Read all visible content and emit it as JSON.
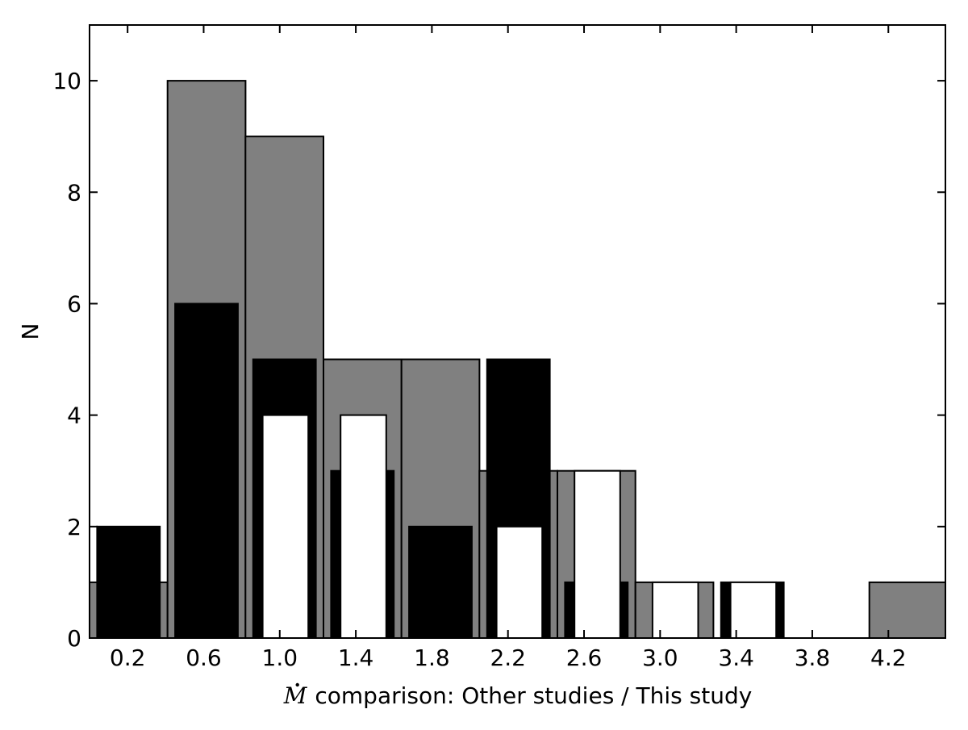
{
  "chart_data": {
    "type": "bar",
    "xlabel": "comparison: Other studies / This study",
    "xlabel_symbol": "M",
    "ylabel": "N",
    "xlim": [
      0.0,
      4.5
    ],
    "ylim": [
      0,
      11
    ],
    "grid": false,
    "x_ticks": [
      {
        "value": 0.2,
        "label": "0.2"
      },
      {
        "value": 0.6,
        "label": "0.6"
      },
      {
        "value": 1.0,
        "label": "1.0"
      },
      {
        "value": 1.4,
        "label": "1.4"
      },
      {
        "value": 1.8,
        "label": "1.8"
      },
      {
        "value": 2.2,
        "label": "2.2"
      },
      {
        "value": 2.6,
        "label": "2.6"
      },
      {
        "value": 3.0,
        "label": "3.0"
      },
      {
        "value": 3.4,
        "label": "3.4"
      },
      {
        "value": 3.8,
        "label": "3.8"
      },
      {
        "value": 4.2,
        "label": "4.2"
      }
    ],
    "y_ticks": [
      {
        "value": 0,
        "label": "0"
      },
      {
        "value": 2,
        "label": "2"
      },
      {
        "value": 4,
        "label": "4"
      },
      {
        "value": 6,
        "label": "6"
      },
      {
        "value": 8,
        "label": "8"
      },
      {
        "value": 10,
        "label": "10"
      }
    ],
    "series": [
      {
        "color": "#808080",
        "bins": [
          {
            "x0": 0.0,
            "x1": 0.41,
            "value": 1
          },
          {
            "x0": 0.41,
            "x1": 0.82,
            "value": 10
          },
          {
            "x0": 0.82,
            "x1": 1.23,
            "value": 9
          },
          {
            "x0": 1.23,
            "x1": 1.64,
            "value": 5
          },
          {
            "x0": 1.64,
            "x1": 2.05,
            "value": 5
          },
          {
            "x0": 2.05,
            "x1": 2.46,
            "value": 3
          },
          {
            "x0": 2.46,
            "x1": 2.87,
            "value": 3
          },
          {
            "x0": 2.87,
            "x1": 3.28,
            "value": 1
          },
          {
            "x0": 3.28,
            "x1": 3.69,
            "value": 0
          },
          {
            "x0": 3.69,
            "x1": 4.1,
            "value": 0
          },
          {
            "x0": 4.1,
            "x1": 4.51,
            "value": 1
          }
        ]
      },
      {
        "color": "#000000",
        "bins": [
          {
            "x0": 0.04,
            "x1": 0.37,
            "value": 2
          },
          {
            "x0": 0.45,
            "x1": 0.78,
            "value": 6
          },
          {
            "x0": 0.86,
            "x1": 1.19,
            "value": 5
          },
          {
            "x0": 1.27,
            "x1": 1.6,
            "value": 3
          },
          {
            "x0": 1.68,
            "x1": 2.01,
            "value": 2
          },
          {
            "x0": 2.09,
            "x1": 2.42,
            "value": 5
          },
          {
            "x0": 2.5,
            "x1": 2.83,
            "value": 1
          },
          {
            "x0": 2.91,
            "x1": 3.24,
            "value": 0
          },
          {
            "x0": 3.32,
            "x1": 3.65,
            "value": 1
          },
          {
            "x0": 3.73,
            "x1": 4.06,
            "value": 0
          },
          {
            "x0": 4.14,
            "x1": 4.47,
            "value": 0
          }
        ]
      },
      {
        "color": "#ffffff",
        "bins": [
          {
            "x0": 0.09,
            "x1": 0.33,
            "value": 0
          },
          {
            "x0": 0.5,
            "x1": 0.74,
            "value": 0
          },
          {
            "x0": 0.91,
            "x1": 1.15,
            "value": 4
          },
          {
            "x0": 1.32,
            "x1": 1.56,
            "value": 4
          },
          {
            "x0": 1.73,
            "x1": 1.97,
            "value": 0
          },
          {
            "x0": 2.14,
            "x1": 2.38,
            "value": 2
          },
          {
            "x0": 2.55,
            "x1": 2.79,
            "value": 3
          },
          {
            "x0": 2.96,
            "x1": 3.2,
            "value": 1
          },
          {
            "x0": 3.37,
            "x1": 3.61,
            "value": 1
          },
          {
            "x0": 3.78,
            "x1": 4.02,
            "value": 0
          },
          {
            "x0": 4.19,
            "x1": 4.43,
            "value": 0
          }
        ]
      }
    ]
  }
}
